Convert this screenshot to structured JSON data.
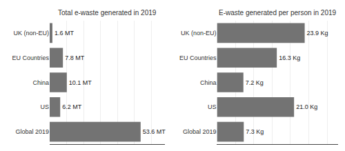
{
  "chart_data": [
    {
      "type": "bar",
      "title": "Total e-waste generated in 2019",
      "orientation": "horizontal",
      "categories": [
        "UK (non-EU)",
        "EU Countries",
        "China",
        "US",
        "Global 2019"
      ],
      "values": [
        1.6,
        7.8,
        10.1,
        6.2,
        53.6
      ],
      "value_labels": [
        "1.6 MT",
        "7.8 MT",
        "10.1 MT",
        "6.2 MT",
        "53.6 MT"
      ],
      "color": "#737373",
      "xlim": [
        0,
        68
      ],
      "xticks": [
        0,
        10,
        20,
        30,
        40,
        50,
        60
      ],
      "grid": true,
      "data_labels": true,
      "tick_labels": "y"
    },
    {
      "type": "bar",
      "title": "E-waste generated per person in 2019",
      "orientation": "horizontal",
      "categories": [
        "UK (non-EU)",
        "EU Countries",
        "China",
        "US",
        "Global 2019"
      ],
      "values": [
        23.9,
        16.3,
        7.2,
        21.0,
        7.3
      ],
      "value_labels": [
        "23.9 Kg",
        "16.3 Kg",
        "7.2 Kg",
        "21.0 Kg",
        "7.3 Kg"
      ],
      "color": "#737373",
      "xlim": [
        0,
        33
      ],
      "xticks": [
        0,
        5,
        10,
        15,
        20,
        25,
        30
      ],
      "grid": true,
      "data_labels": true,
      "tick_labels": "y"
    }
  ]
}
